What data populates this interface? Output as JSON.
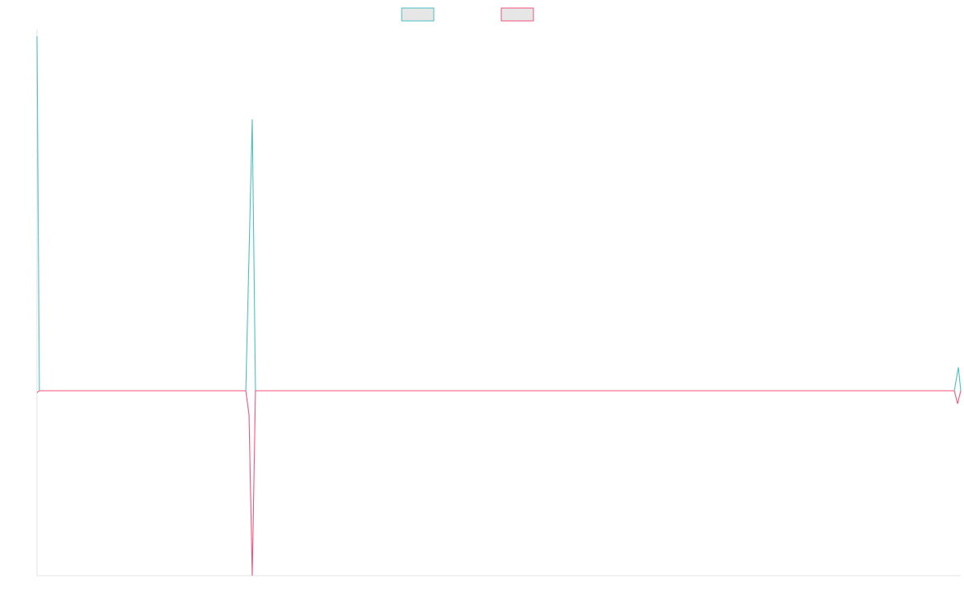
{
  "chart_data": {
    "type": "line",
    "title": "",
    "xlabel": "",
    "ylabel": "",
    "grid": false,
    "legend": "top-center",
    "ylim": [
      -1.0,
      2.0
    ],
    "series": [
      {
        "color": "#4bbfbf",
        "fill": "#e6e6e6",
        "points": [
          [
            0,
            1.96
          ],
          [
            3,
            0
          ],
          [
            260,
            0
          ],
          [
            268,
            1.5
          ],
          [
            272,
            0
          ],
          [
            1142,
            0
          ],
          [
            1147,
            0.13
          ],
          [
            1150,
            0
          ]
        ]
      },
      {
        "color": "#f0547a",
        "fill": "#e6e6e6",
        "points": [
          [
            0,
            -0.01
          ],
          [
            3,
            0
          ],
          [
            260,
            0
          ],
          [
            264,
            -0.13
          ],
          [
            268,
            -1.0
          ],
          [
            272,
            0
          ],
          [
            1142,
            0
          ],
          [
            1146,
            -0.07
          ],
          [
            1150,
            0
          ]
        ]
      }
    ]
  }
}
